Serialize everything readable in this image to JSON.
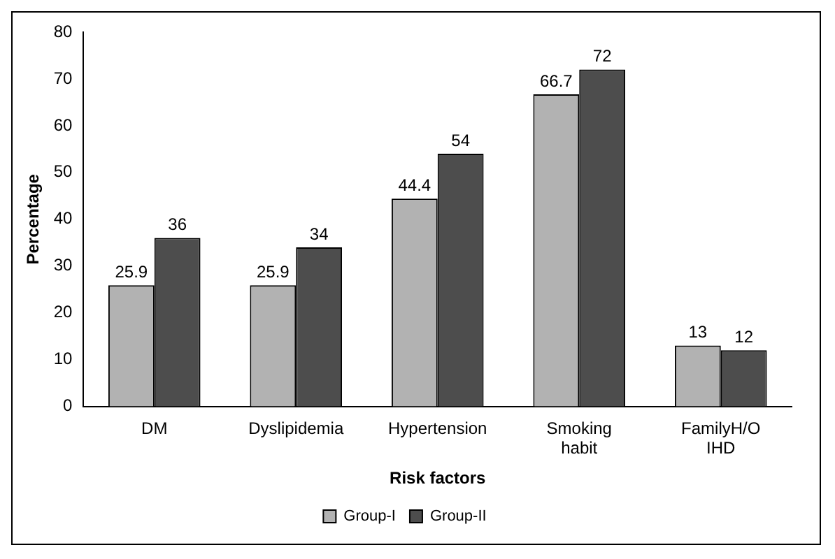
{
  "chart_data": {
    "type": "bar",
    "xlabel": "Risk factors",
    "ylabel": "Percentage",
    "categories": [
      "DM",
      "Dyslipidemia",
      "Hypertension",
      "Smoking habit",
      "FamilyH/O IHD"
    ],
    "series": [
      {
        "name": "Group-I",
        "color": "#b2b2b2",
        "values": [
          25.9,
          25.9,
          44.4,
          66.7,
          13
        ]
      },
      {
        "name": "Group-II",
        "color": "#4d4d4d",
        "values": [
          36,
          34,
          54,
          72,
          12
        ]
      }
    ],
    "ylim": [
      0,
      80
    ],
    "yticks": [
      0,
      10,
      20,
      30,
      40,
      50,
      60,
      70,
      80
    ],
    "grid": false,
    "legend": "bottom",
    "data_labels": true
  }
}
